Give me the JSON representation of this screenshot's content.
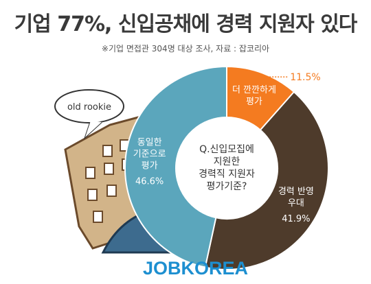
{
  "title": "기업 77%, 신입공채에 경력 지원자 있다",
  "source": "※기업 면접관 304명 대상 조사, 자료 : 잡코리아",
  "bubble_text": "old rookie",
  "brand": "JOBKOREA",
  "chart_data": {
    "type": "pie",
    "donut": true,
    "center_label": [
      "Q.신입모집에",
      "지원한",
      "경력직 지원자",
      "평가기준?"
    ],
    "slices": [
      {
        "label_lines": [
          "더 깐깐하게",
          "평가"
        ],
        "value": 11.5,
        "value_text": "11.5%",
        "color": "#f47b20"
      },
      {
        "label_lines": [
          "경력 반영",
          "우대"
        ],
        "value": 41.9,
        "value_text": "41.9%",
        "color": "#4e3b2b"
      },
      {
        "label_lines": [
          "동일한",
          "기준으로",
          "평가"
        ],
        "value": 46.6,
        "value_text": "46.6%",
        "color": "#5ba6bc"
      }
    ]
  }
}
